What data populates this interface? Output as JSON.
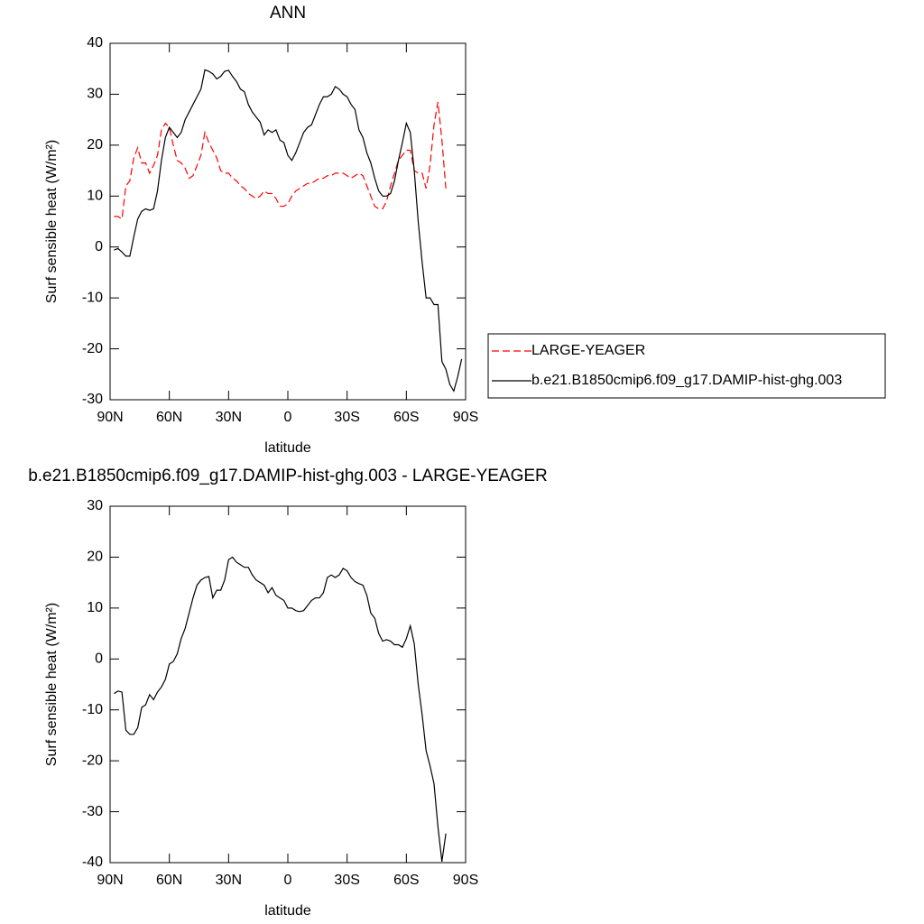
{
  "chart_data": [
    {
      "type": "line",
      "title": "ANN",
      "y_label": "Surf sensible heat (W/m²)",
      "x_label": "latitude",
      "xlim": [
        90,
        -90
      ],
      "xticks": [
        {
          "value": 90,
          "label": "90N"
        },
        {
          "value": 60,
          "label": "60N"
        },
        {
          "value": 30,
          "label": "30N"
        },
        0,
        {
          "value": -30,
          "label": "30S"
        },
        {
          "value": -60,
          "label": "60S"
        },
        {
          "value": -90,
          "label": "90S"
        }
      ],
      "ylim": [
        -30,
        40
      ],
      "yticks": [
        -30,
        -20,
        -10,
        0,
        10,
        20,
        30,
        40
      ],
      "legend": "right",
      "x": [
        88,
        86,
        84,
        82,
        80,
        78,
        76,
        74,
        72,
        70,
        68,
        66,
        64,
        62,
        60,
        58,
        56,
        54,
        52,
        50,
        48,
        46,
        44,
        42,
        40,
        38,
        36,
        34,
        32,
        30,
        28,
        26,
        24,
        22,
        20,
        18,
        16,
        14,
        12,
        10,
        8,
        6,
        4,
        2,
        0,
        -2,
        -4,
        -6,
        -8,
        -10,
        -12,
        -14,
        -16,
        -18,
        -20,
        -22,
        -24,
        -26,
        -28,
        -30,
        -32,
        -34,
        -36,
        -38,
        -40,
        -42,
        -44,
        -46,
        -48,
        -50,
        -52,
        -54,
        -56,
        -58,
        -60,
        -62,
        -64,
        -66,
        -68,
        -70,
        -72,
        -74,
        -76,
        -78,
        -80,
        -82,
        -84,
        -86,
        -88
      ],
      "series": [
        {
          "name": "LARGE-YEAGER",
          "color": "#ff0000",
          "dashed": true,
          "values": [
            6,
            6,
            5.5,
            12,
            13,
            17.5,
            19.5,
            16.5,
            16.5,
            14.5,
            16,
            18,
            23,
            24.3,
            23.5,
            20,
            17,
            16.5,
            15.5,
            13.5,
            14,
            16,
            18,
            22.5,
            20.5,
            19,
            17.5,
            15,
            14.5,
            14.5,
            13.5,
            13,
            12,
            11.5,
            10.5,
            10,
            9.5,
            10,
            11,
            10.5,
            10.5,
            9.5,
            8,
            8,
            8.5,
            10,
            11,
            11.5,
            12,
            12.5,
            12.5,
            13,
            13.5,
            13.5,
            14,
            14,
            14.5,
            14.5,
            14.5,
            14,
            13.5,
            14,
            14.5,
            14,
            12,
            10,
            8,
            7.5,
            7.5,
            9,
            12,
            14.5,
            17,
            18,
            19,
            19,
            15,
            14.5,
            14.5,
            11.5,
            16,
            24,
            28.5,
            21,
            11.5,
            null,
            null,
            null,
            null
          ]
        },
        {
          "name": "b.e21.B1850cmip6.f09_g17.DAMIP-hist-ghg.003",
          "color": "#000000",
          "dashed": false,
          "values": [
            -0.6,
            -0.3,
            -1,
            -1.8,
            -1.8,
            2,
            5.5,
            7,
            7.5,
            7.2,
            7.5,
            11,
            17,
            21.5,
            23.5,
            22.5,
            21.5,
            22.5,
            25,
            26.5,
            28,
            29.5,
            31,
            34.8,
            34.5,
            34,
            33,
            33.5,
            34.5,
            34.7,
            33.5,
            32.5,
            31,
            30.5,
            28,
            26.5,
            25.5,
            24.5,
            22,
            23,
            22.5,
            23,
            21,
            20.5,
            18,
            17,
            18.5,
            20.5,
            22.5,
            23.5,
            24,
            26,
            28,
            29.5,
            29.5,
            30,
            31.5,
            31,
            30,
            29.5,
            28,
            27,
            23,
            21.5,
            18.5,
            16.5,
            13.5,
            11,
            10,
            10,
            10.5,
            13,
            17,
            20.5,
            24.3,
            22.5,
            15,
            5,
            -3,
            -10,
            -10,
            -11.3,
            -11.3,
            -22.5,
            -24,
            -27,
            -28.3,
            -25.5,
            -22
          ]
        }
      ]
    },
    {
      "type": "line",
      "title": "b.e21.B1850cmip6.f09_g17.DAMIP-hist-ghg.003 - LARGE-YEAGER",
      "y_label": "Surf sensible heat (W/m²)",
      "x_label": "latitude",
      "xlim": [
        90,
        -90
      ],
      "xticks": [
        {
          "value": 90,
          "label": "90N"
        },
        {
          "value": 60,
          "label": "60N"
        },
        {
          "value": 30,
          "label": "30N"
        },
        0,
        {
          "value": -30,
          "label": "30S"
        },
        {
          "value": -60,
          "label": "60S"
        },
        {
          "value": -90,
          "label": "90S"
        }
      ],
      "ylim": [
        -40,
        30
      ],
      "yticks": [
        -40,
        -30,
        -20,
        -10,
        0,
        10,
        20,
        30
      ],
      "x": [
        88,
        86,
        84,
        82,
        80,
        78,
        76,
        74,
        72,
        70,
        68,
        66,
        64,
        62,
        60,
        58,
        56,
        54,
        52,
        50,
        48,
        46,
        44,
        42,
        40,
        38,
        36,
        34,
        32,
        30,
        28,
        26,
        24,
        22,
        20,
        18,
        16,
        14,
        12,
        10,
        8,
        6,
        4,
        2,
        0,
        -2,
        -4,
        -6,
        -8,
        -10,
        -12,
        -14,
        -16,
        -18,
        -20,
        -22,
        -24,
        -26,
        -28,
        -30,
        -32,
        -34,
        -36,
        -38,
        -40,
        -42,
        -44,
        -46,
        -48,
        -50,
        -52,
        -54,
        -56,
        -58,
        -60,
        -62,
        -64,
        -66,
        -68,
        -70,
        -72,
        -74,
        -76,
        -78,
        -80,
        -82,
        -84,
        -86,
        -88
      ],
      "series": [
        {
          "color": "#000000",
          "dashed": false,
          "values": [
            -6.8,
            -6.3,
            -6.5,
            -14,
            -14.8,
            -14.8,
            -13.5,
            -9.5,
            -9,
            -7,
            -8,
            -6.5,
            -5.5,
            -4,
            -1,
            -0.5,
            1,
            4,
            6,
            9,
            12,
            14.5,
            15.5,
            16,
            16.2,
            12,
            13.5,
            13.5,
            15.5,
            19.5,
            20,
            19,
            18.5,
            18,
            18,
            16.5,
            15.5,
            15,
            14.5,
            13,
            14,
            12.5,
            12,
            11.5,
            10,
            10,
            9.5,
            9.3,
            9.5,
            10.5,
            11.5,
            12,
            12,
            13,
            16,
            16.5,
            16,
            16.5,
            17.8,
            17.3,
            16,
            15.2,
            14.8,
            14.5,
            12.5,
            9,
            8,
            5,
            3.5,
            3.8,
            3.5,
            2.8,
            2.8,
            2.3,
            4,
            6.5,
            3,
            -5,
            -11,
            -18,
            -21,
            -24.5,
            -33,
            -39.8,
            -34.3,
            null,
            null,
            null,
            null
          ]
        }
      ]
    }
  ]
}
